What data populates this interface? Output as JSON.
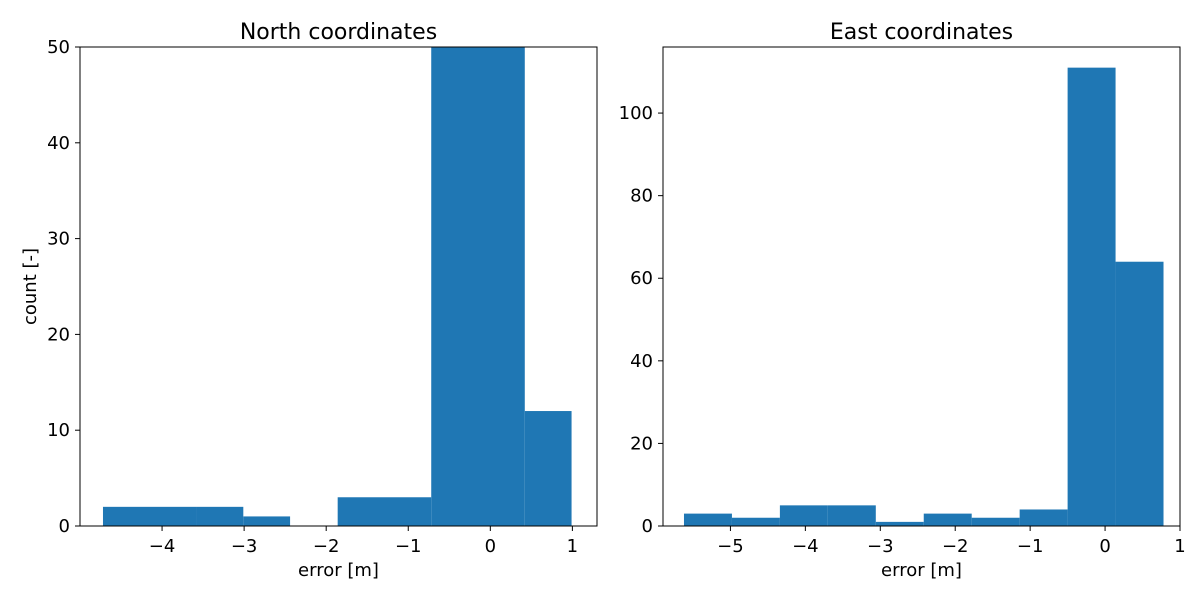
{
  "chart_data": [
    {
      "type": "bar",
      "title": "North coordinates",
      "xlabel": "error [m]",
      "ylabel": "count [-]",
      "xlim": [
        -5.0,
        1.3
      ],
      "ylim": [
        0,
        50
      ],
      "xticks": [
        -4,
        -3,
        -2,
        -1,
        0,
        1
      ],
      "xtick_labels": [
        "−4",
        "−3",
        "−2",
        "−1",
        "0",
        "1"
      ],
      "yticks": [
        0,
        10,
        20,
        30,
        40,
        50
      ],
      "ytick_labels": [
        "0",
        "10",
        "20",
        "30",
        "40",
        "50"
      ],
      "color": "#1f77b4",
      "grid": false,
      "bins": [
        {
          "x0": -4.72,
          "x1": -3.58,
          "count": 2
        },
        {
          "x0": -3.58,
          "x1": -3.01,
          "count": 2
        },
        {
          "x0": -3.01,
          "x1": -2.44,
          "count": 1
        },
        {
          "x0": -2.44,
          "x1": -1.86,
          "count": 0
        },
        {
          "x0": -1.86,
          "x1": -0.72,
          "count": 3
        },
        {
          "x0": -0.72,
          "x1": 0.42,
          "count": 50
        },
        {
          "x0": 0.42,
          "x1": 0.99,
          "count": 12
        }
      ]
    },
    {
      "type": "bar",
      "title": "East coordinates",
      "xlabel": "error [m]",
      "ylabel": "",
      "xlim": [
        -5.9,
        1.0
      ],
      "ylim": [
        0,
        116
      ],
      "xticks": [
        -5,
        -4,
        -3,
        -2,
        -1,
        0,
        1
      ],
      "xtick_labels": [
        "−5",
        "−4",
        "−3",
        "−2",
        "−1",
        "0",
        "1"
      ],
      "yticks": [
        0,
        20,
        40,
        60,
        80,
        100
      ],
      "ytick_labels": [
        "0",
        "20",
        "40",
        "60",
        "80",
        "100"
      ],
      "color": "#1f77b4",
      "grid": false,
      "bins": [
        {
          "x0": -5.62,
          "x1": -4.98,
          "count": 3
        },
        {
          "x0": -4.98,
          "x1": -4.34,
          "count": 2
        },
        {
          "x0": -4.34,
          "x1": -3.7,
          "count": 5
        },
        {
          "x0": -3.7,
          "x1": -3.06,
          "count": 5
        },
        {
          "x0": -3.06,
          "x1": -2.42,
          "count": 1
        },
        {
          "x0": -2.42,
          "x1": -1.78,
          "count": 3
        },
        {
          "x0": -1.78,
          "x1": -1.14,
          "count": 2
        },
        {
          "x0": -1.14,
          "x1": -0.5,
          "count": 4
        },
        {
          "x0": -0.5,
          "x1": 0.14,
          "count": 111
        },
        {
          "x0": 0.14,
          "x1": 0.78,
          "count": 64
        }
      ]
    }
  ]
}
